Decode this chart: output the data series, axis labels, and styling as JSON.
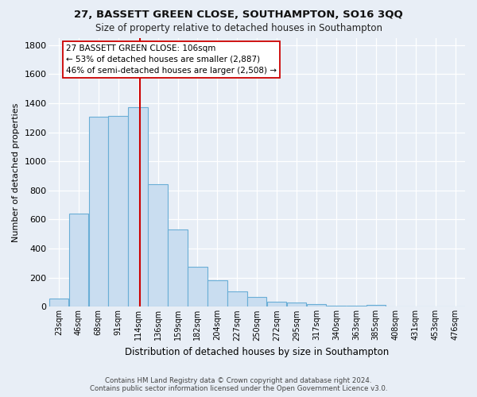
{
  "title1": "27, BASSETT GREEN CLOSE, SOUTHAMPTON, SO16 3QQ",
  "title2": "Size of property relative to detached houses in Southampton",
  "xlabel": "Distribution of detached houses by size in Southampton",
  "ylabel": "Number of detached properties",
  "footnote1": "Contains HM Land Registry data © Crown copyright and database right 2024.",
  "footnote2": "Contains public sector information licensed under the Open Government Licence v3.0.",
  "bar_labels": [
    "23sqm",
    "46sqm",
    "68sqm",
    "91sqm",
    "114sqm",
    "136sqm",
    "159sqm",
    "182sqm",
    "204sqm",
    "227sqm",
    "250sqm",
    "272sqm",
    "295sqm",
    "317sqm",
    "340sqm",
    "363sqm",
    "385sqm",
    "408sqm",
    "431sqm",
    "453sqm",
    "476sqm"
  ],
  "bar_values": [
    55,
    640,
    1305,
    1310,
    1375,
    845,
    530,
    275,
    185,
    105,
    65,
    35,
    32,
    18,
    8,
    10,
    12,
    0,
    0,
    0,
    0
  ],
  "bar_color": "#c9ddf0",
  "bar_edge_color": "#6aaed6",
  "bg_color": "#e8eef6",
  "grid_color": "#ffffff",
  "property_line_color": "#cc0000",
  "annotation_line1": "27 BASSETT GREEN CLOSE: 106sqm",
  "annotation_line2": "← 53% of detached houses are smaller (2,887)",
  "annotation_line3": "46% of semi-detached houses are larger (2,508) →",
  "annotation_box_color": "#ffffff",
  "annotation_box_edge": "#cc0000",
  "ylim": [
    0,
    1850
  ],
  "yticks": [
    0,
    200,
    400,
    600,
    800,
    1000,
    1200,
    1400,
    1600,
    1800
  ],
  "bin_width": 23,
  "property_sqm": 106,
  "n_bins": 21
}
